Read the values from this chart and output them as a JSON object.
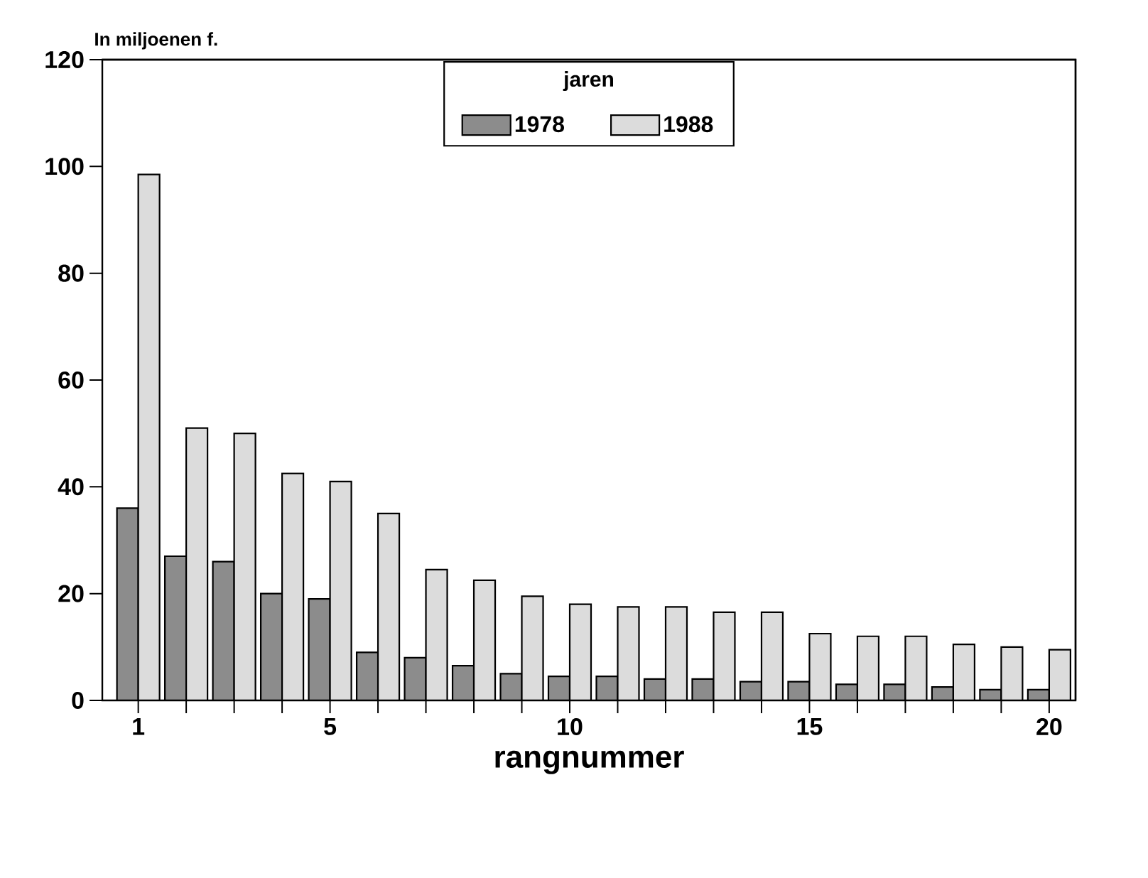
{
  "chart_data": {
    "type": "bar",
    "ylabel": "In miljoenen f.",
    "xlabel": "rangnummer",
    "legend_title": "jaren",
    "categories": [
      "1",
      null,
      null,
      null,
      "5",
      null,
      null,
      null,
      null,
      "10",
      null,
      null,
      null,
      null,
      "15",
      null,
      null,
      null,
      null,
      "20"
    ],
    "series": [
      {
        "name": "1978",
        "color": "#8c8c8c",
        "values": [
          36,
          27,
          26,
          20,
          19,
          9,
          8,
          6.5,
          5,
          4.5,
          4.5,
          4,
          4,
          3.5,
          3.5,
          3,
          3,
          2.5,
          2,
          2
        ]
      },
      {
        "name": "1988",
        "color": "#dcdcdc",
        "values": [
          98.5,
          51,
          50,
          42.5,
          41,
          35,
          24.5,
          22.5,
          19.5,
          18,
          17.5,
          17.5,
          16.5,
          16.5,
          12.5,
          12,
          12,
          10.5,
          10,
          9.5
        ]
      }
    ],
    "ylim": [
      0,
      120
    ],
    "yticks": [
      0,
      20,
      40,
      60,
      80,
      100,
      120
    ],
    "legend": "top",
    "grid": false
  }
}
